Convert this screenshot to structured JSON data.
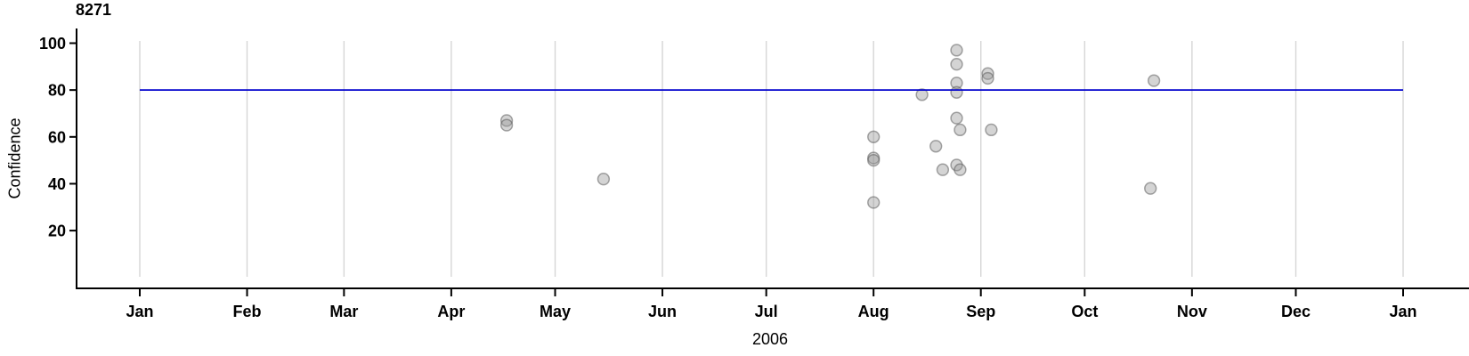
{
  "chart_data": {
    "type": "scatter",
    "title": "8271",
    "xlabel": "2006",
    "ylabel": "Confidence",
    "x_axis": {
      "unit": "months of 2006 (date axis, Jan 2006 to Jan 2007)",
      "ticks": [
        {
          "label": "Jan",
          "day": 0
        },
        {
          "label": "Feb",
          "day": 31
        },
        {
          "label": "Mar",
          "day": 59
        },
        {
          "label": "Apr",
          "day": 90
        },
        {
          "label": "May",
          "day": 120
        },
        {
          "label": "Jun",
          "day": 151
        },
        {
          "label": "Jul",
          "day": 181
        },
        {
          "label": "Aug",
          "day": 212
        },
        {
          "label": "Sep",
          "day": 243
        },
        {
          "label": "Oct",
          "day": 273
        },
        {
          "label": "Nov",
          "day": 304
        },
        {
          "label": "Dec",
          "day": 334
        },
        {
          "label": "Jan",
          "day": 365
        }
      ]
    },
    "y_axis": {
      "ticks": [
        20,
        40,
        60,
        80,
        100
      ],
      "range": [
        0,
        105
      ],
      "grid": false
    },
    "reference_line": {
      "value": 80,
      "color": "#0000cd"
    },
    "points": [
      {
        "date": "2006-04-17",
        "confidence": 67
      },
      {
        "date": "2006-04-17",
        "confidence": 65
      },
      {
        "date": "2006-05-15",
        "confidence": 42
      },
      {
        "date": "2006-08-01",
        "confidence": 60
      },
      {
        "date": "2006-08-01",
        "confidence": 51
      },
      {
        "date": "2006-08-01",
        "confidence": 50
      },
      {
        "date": "2006-08-01",
        "confidence": 32
      },
      {
        "date": "2006-08-15",
        "confidence": 78
      },
      {
        "date": "2006-08-19",
        "confidence": 56
      },
      {
        "date": "2006-08-21",
        "confidence": 46
      },
      {
        "date": "2006-08-25",
        "confidence": 97
      },
      {
        "date": "2006-08-25",
        "confidence": 91
      },
      {
        "date": "2006-08-25",
        "confidence": 83
      },
      {
        "date": "2006-08-25",
        "confidence": 79
      },
      {
        "date": "2006-08-25",
        "confidence": 68
      },
      {
        "date": "2006-08-25",
        "confidence": 48
      },
      {
        "date": "2006-08-26",
        "confidence": 63
      },
      {
        "date": "2006-08-26",
        "confidence": 46
      },
      {
        "date": "2006-09-03",
        "confidence": 87
      },
      {
        "date": "2006-09-03",
        "confidence": 85
      },
      {
        "date": "2006-09-04",
        "confidence": 63
      },
      {
        "date": "2006-10-20",
        "confidence": 38
      },
      {
        "date": "2006-10-21",
        "confidence": 84
      }
    ],
    "style": {
      "gridline_color": "#d6d6d6",
      "axis_color": "#000000",
      "point_fill": "#999999",
      "point_fill_opacity": 0.42,
      "point_stroke": "#5f5f5f",
      "point_stroke_opacity": 0.55,
      "background": "#ffffff"
    }
  }
}
